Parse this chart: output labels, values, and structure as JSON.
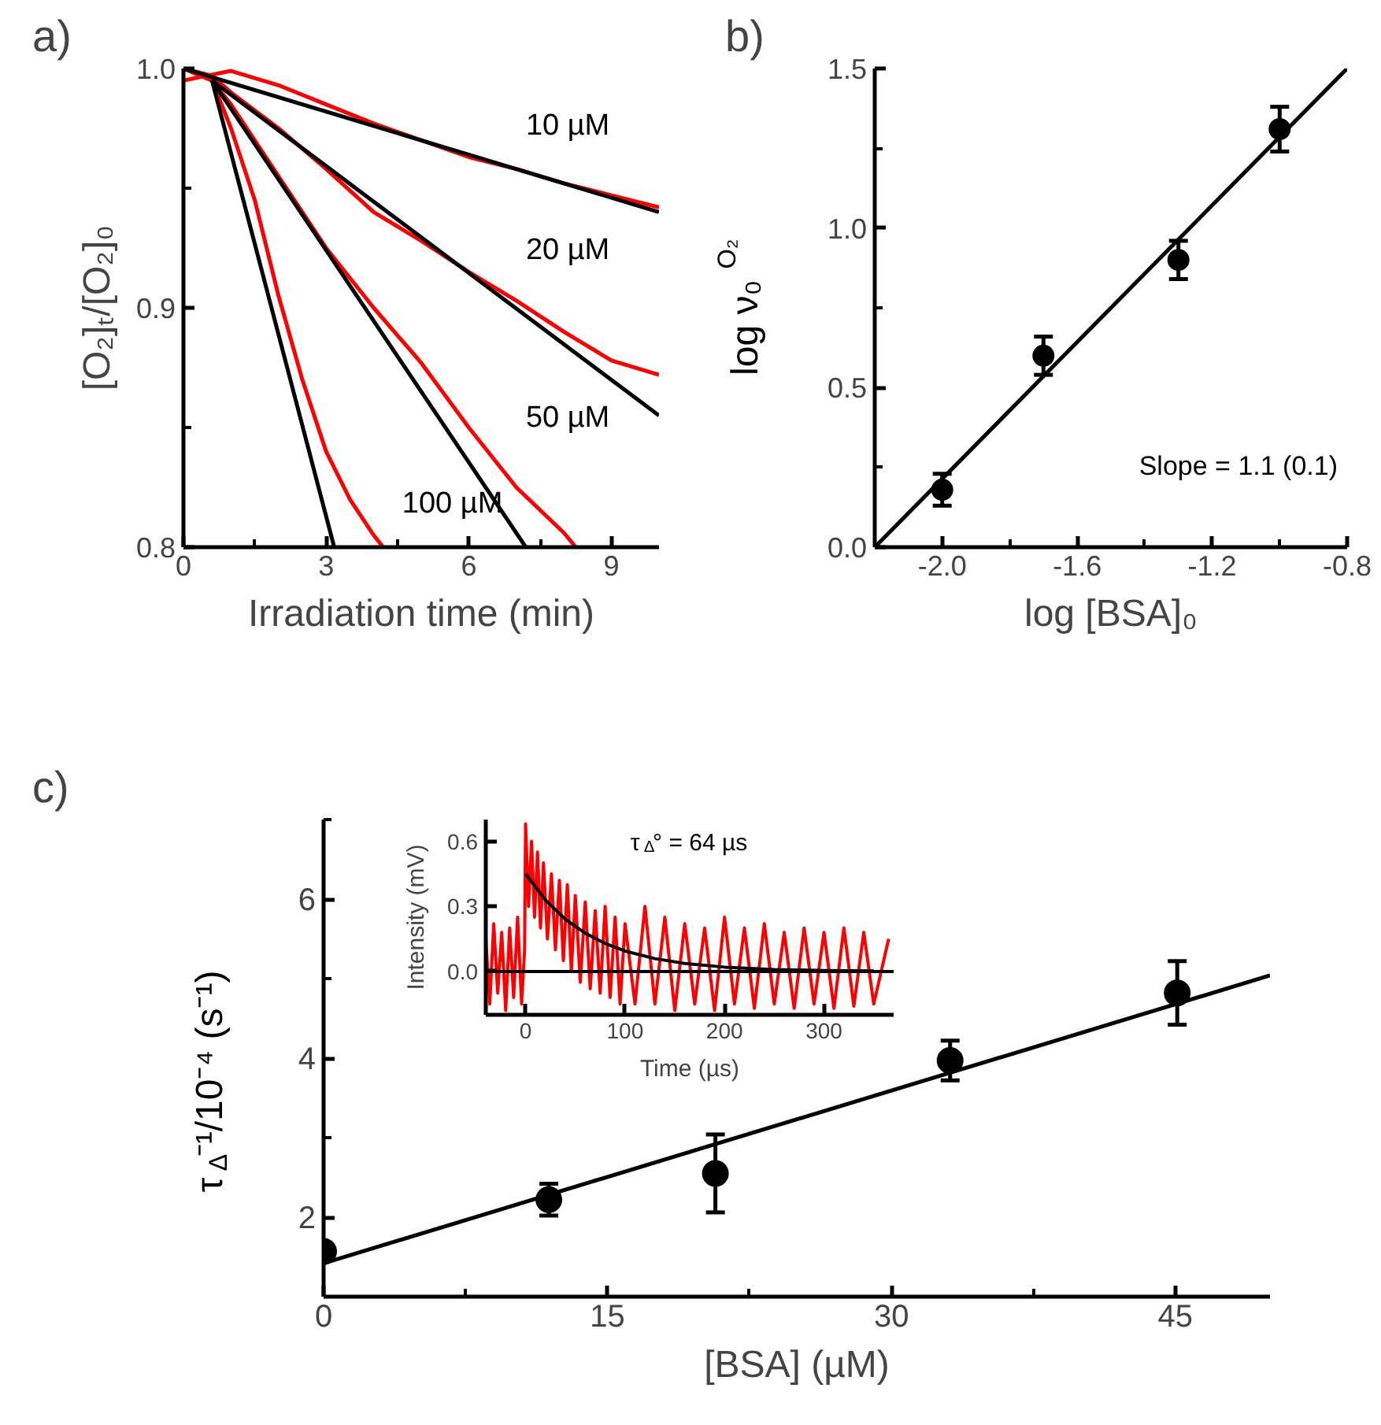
{
  "chart_data": [
    {
      "type": "line",
      "title": "a)",
      "xlabel": "Irradiation time (min)",
      "ylabel": "[O₂]ₜ/[O₂]₀",
      "xlim": [
        0,
        10
      ],
      "ylim": [
        0.8,
        1.0
      ],
      "xticks": [
        0,
        {
          "value": 1.5,
          "label": null
        },
        3,
        {
          "value": 4.5,
          "label": null
        },
        6,
        {
          "value": 7.5,
          "label": null
        },
        9
      ],
      "yticks": [
        {
          "value": 0.8,
          "label": "0.8"
        },
        {
          "value": 0.85,
          "label": null
        },
        {
          "value": 0.9,
          "label": "0.9"
        },
        {
          "value": 0.95,
          "label": null
        },
        {
          "value": 1.0,
          "label": "1.0"
        }
      ],
      "grid": false,
      "series": [
        {
          "color": "#ff0000",
          "x": [
            0,
            0.5,
            1,
            2,
            3,
            4,
            5,
            6,
            7,
            8,
            9,
            10
          ],
          "values": [
            0.995,
            0.997,
            0.999,
            0.993,
            0.985,
            0.977,
            0.97,
            0.963,
            0.958,
            0.952,
            0.947,
            0.942
          ]
        },
        {
          "color": "#ff0000",
          "x": [
            0,
            0.6,
            1,
            2,
            3,
            4,
            5,
            6,
            7,
            8,
            9,
            10
          ],
          "values": [
            1.0,
            0.997,
            0.99,
            0.975,
            0.958,
            0.94,
            0.928,
            0.915,
            0.903,
            0.89,
            0.878,
            0.872
          ]
        },
        {
          "color": "#ff0000",
          "x": [
            0,
            0.6,
            1,
            2,
            3,
            4,
            5,
            6,
            7,
            8,
            8.25
          ],
          "values": [
            1.0,
            0.995,
            0.985,
            0.955,
            0.925,
            0.9,
            0.877,
            0.85,
            0.825,
            0.806,
            0.8
          ]
        },
        {
          "color": "#ff0000",
          "x": [
            0,
            0.6,
            1,
            1.5,
            2,
            2.5,
            3,
            3.5,
            4,
            4.2
          ],
          "values": [
            1.0,
            0.995,
            0.975,
            0.945,
            0.905,
            0.87,
            0.84,
            0.82,
            0.805,
            0.8
          ]
        },
        {
          "color": "#000000",
          "x": [
            0,
            10
          ],
          "values": [
            1.0,
            0.94
          ]
        },
        {
          "color": "#000000",
          "x": [
            0.6,
            10
          ],
          "values": [
            0.995,
            0.855
          ]
        },
        {
          "color": "#000000",
          "x": [
            0.6,
            7.2
          ],
          "values": [
            0.995,
            0.8
          ]
        },
        {
          "color": "#000000",
          "x": [
            0.6,
            3.17
          ],
          "values": [
            0.995,
            0.8
          ]
        }
      ],
      "annotations": [
        "10 µM",
        "20 µM",
        "50 µM",
        "100 µM"
      ]
    },
    {
      "type": "scatter",
      "title": "b)",
      "xlabel": "log [BSA]₀",
      "ylabel": "log ν₀$^{O₂}$",
      "xlim": [
        -2.2,
        -0.8
      ],
      "ylim": [
        0,
        1.5
      ],
      "xticks": [
        {
          "value": -2.0,
          "label": "-2.0"
        },
        {
          "value": -1.8,
          "label": null
        },
        {
          "value": -1.6,
          "label": "-1.6"
        },
        {
          "value": -1.4,
          "label": null
        },
        {
          "value": -1.2,
          "label": "-1.2"
        },
        {
          "value": -1.0,
          "label": null
        },
        {
          "value": -0.8,
          "label": "-0.8"
        }
      ],
      "yticks": [
        {
          "value": 0,
          "label": "0.0"
        },
        {
          "value": 0.25,
          "label": null
        },
        0.5,
        {
          "value": 0.75,
          "label": null
        },
        {
          "value": 1,
          "label": "1.0"
        },
        {
          "value": 1.25,
          "label": null
        },
        1.5
      ],
      "grid": false,
      "series": [
        {
          "color": "#000000",
          "marker": "circle",
          "x": [
            -2.0,
            -1.7,
            -1.3,
            -1.0
          ],
          "values": [
            0.18,
            0.6,
            0.9,
            1.31
          ],
          "errors": [
            0.05,
            0.06,
            0.06,
            0.07
          ]
        },
        {
          "type": "line",
          "color": "#000000",
          "x": [
            -2.2,
            -0.8
          ],
          "values": [
            0,
            1.5
          ]
        }
      ],
      "annotations": [
        "Slope = 1.1 (0.1)"
      ]
    },
    {
      "type": "scatter",
      "title": "c)",
      "xlabel": "[BSA] (µM)",
      "ylabel": "τ$_{Δ}$⁻¹/10⁻⁴ (s⁻¹)",
      "xlim": [
        0,
        50
      ],
      "ylim": [
        1,
        7
      ],
      "xticks": [
        0,
        {
          "value": 7.5,
          "label": null
        },
        15,
        {
          "value": 22.5,
          "label": null
        },
        30,
        {
          "value": 37.5,
          "label": null
        },
        45
      ],
      "yticks": [
        {
          "value": 1,
          "label": null
        },
        2,
        {
          "value": 3,
          "label": null
        },
        4,
        {
          "value": 5,
          "label": null
        },
        6,
        {
          "value": 7,
          "label": null
        }
      ],
      "grid": false,
      "series": [
        {
          "color": "#000000",
          "marker": "circle",
          "x": [
            0,
            11.9,
            20.7,
            33.1,
            45.1
          ],
          "values": [
            1.57,
            2.22,
            2.55,
            3.97,
            4.82
          ],
          "errors": [
            0.1,
            0.2,
            0.49,
            0.25,
            0.4
          ]
        },
        {
          "type": "line",
          "color": "#000000",
          "x": [
            0,
            50
          ],
          "values": [
            1.42,
            5.04
          ]
        }
      ]
    },
    {
      "type": "line",
      "xlabel": "Time (µs)",
      "ylabel": "Intensity (mV)",
      "xlim": [
        -40,
        370
      ],
      "ylim": [
        -0.2,
        0.7
      ],
      "xticks": [
        0,
        100,
        200,
        300
      ],
      "yticks": [
        {
          "value": 0,
          "label": "0.0"
        },
        0.3,
        0.6
      ],
      "grid": false,
      "ref_lines": [
        {
          "axis": "y",
          "value": 0,
          "color": "#000000"
        }
      ],
      "series": [
        {
          "color": "#ff0000",
          "x": [
            -40,
            -36,
            -32,
            -28,
            -24,
            -20,
            -16,
            -12,
            -8,
            -4,
            -1,
            0,
            3,
            6,
            9,
            12,
            15,
            18,
            22,
            26,
            30,
            34,
            38,
            42,
            46,
            50,
            55,
            60,
            65,
            70,
            75,
            80,
            85,
            90,
            95,
            100,
            110,
            120,
            130,
            140,
            150,
            160,
            170,
            180,
            190,
            200,
            210,
            220,
            230,
            240,
            250,
            260,
            270,
            280,
            290,
            300,
            310,
            320,
            330,
            340,
            350,
            365
          ],
          "values": [
            0.15,
            -0.15,
            0.22,
            -0.1,
            0.18,
            -0.18,
            0.2,
            -0.12,
            0.25,
            -0.15,
            0.1,
            0.68,
            0.3,
            0.6,
            0.25,
            0.55,
            0.2,
            0.5,
            0.15,
            0.45,
            0.1,
            0.42,
            0.05,
            0.4,
            0.0,
            0.35,
            -0.05,
            0.32,
            -0.08,
            0.28,
            -0.1,
            0.3,
            -0.12,
            0.25,
            -0.15,
            0.22,
            -0.15,
            0.3,
            -0.15,
            0.25,
            -0.18,
            0.22,
            -0.15,
            0.2,
            -0.18,
            0.25,
            -0.15,
            0.2,
            -0.17,
            0.22,
            -0.15,
            0.18,
            -0.17,
            0.2,
            -0.15,
            0.18,
            -0.17,
            0.2,
            -0.16,
            0.18,
            -0.15,
            0.15
          ]
        },
        {
          "color": "#000000",
          "x": [
            0,
            20,
            40,
            60,
            80,
            100,
            130,
            160,
            200,
            250,
            300,
            350
          ],
          "values": [
            0.45,
            0.329,
            0.24,
            0.176,
            0.129,
            0.094,
            0.059,
            0.037,
            0.02,
            0.009,
            0.004,
            0.002
          ]
        }
      ],
      "annotations": [
        "τ$_{Δ}$° = 64 µs"
      ]
    }
  ]
}
